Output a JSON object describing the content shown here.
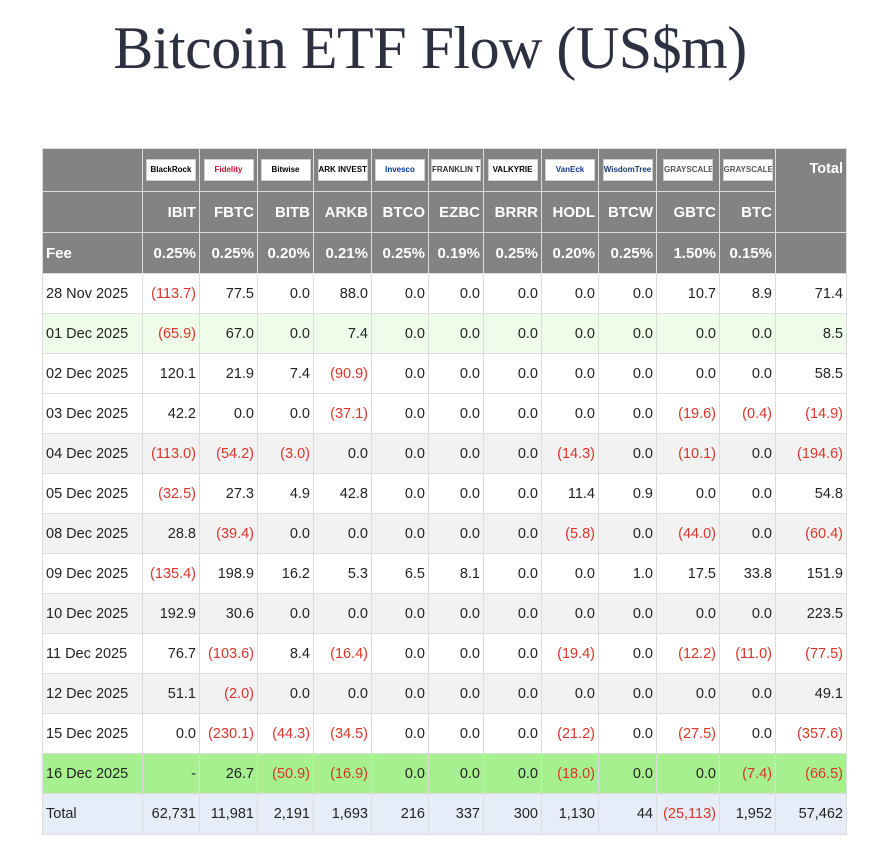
{
  "title": "Bitcoin ETF Flow (US$m)",
  "logos": [
    {
      "issuer": "BlackRock",
      "color": "#000000"
    },
    {
      "issuer": "Fidelity",
      "color": "#c8102e"
    },
    {
      "issuer": "Bitwise",
      "color": "#000000"
    },
    {
      "issuer": "ARK INVEST",
      "color": "#000000"
    },
    {
      "issuer": "Invesco",
      "color": "#0033a0"
    },
    {
      "issuer": "FRANKLIN TEMPLETON",
      "color": "#333333"
    },
    {
      "issuer": "VALKYRIE",
      "color": "#000000"
    },
    {
      "issuer": "VanEck",
      "color": "#1a3a8c"
    },
    {
      "issuer": "WisdomTree",
      "color": "#1a3a6c"
    },
    {
      "issuer": "GRAYSCALE",
      "color": "#555555"
    },
    {
      "issuer": "GRAYSCALE",
      "color": "#555555"
    }
  ],
  "header": {
    "total_label": "Total",
    "fee_label": "Fee",
    "tickers": [
      "IBIT",
      "FBTC",
      "BITB",
      "ARKB",
      "BTCO",
      "EZBC",
      "BRRR",
      "HODL",
      "BTCW",
      "GBTC",
      "BTC"
    ],
    "fees": [
      "0.25%",
      "0.25%",
      "0.20%",
      "0.21%",
      "0.25%",
      "0.19%",
      "0.25%",
      "0.20%",
      "0.25%",
      "1.50%",
      "0.15%"
    ]
  },
  "rows": [
    {
      "date": "28 Nov 2025",
      "values": [
        "(113.7)",
        "77.5",
        "0.0",
        "88.0",
        "0.0",
        "0.0",
        "0.0",
        "0.0",
        "0.0",
        "10.7",
        "8.9"
      ],
      "total": "71.4",
      "style": "odd"
    },
    {
      "date": "01 Dec 2025",
      "values": [
        "(65.9)",
        "67.0",
        "0.0",
        "7.4",
        "0.0",
        "0.0",
        "0.0",
        "0.0",
        "0.0",
        "0.0",
        "0.0"
      ],
      "total": "8.5",
      "style": "light"
    },
    {
      "date": "02 Dec 2025",
      "values": [
        "120.1",
        "21.9",
        "7.4",
        "(90.9)",
        "0.0",
        "0.0",
        "0.0",
        "0.0",
        "0.0",
        "0.0",
        "0.0"
      ],
      "total": "58.5",
      "style": "odd"
    },
    {
      "date": "03 Dec 2025",
      "values": [
        "42.2",
        "0.0",
        "0.0",
        "(37.1)",
        "0.0",
        "0.0",
        "0.0",
        "0.0",
        "0.0",
        "(19.6)",
        "(0.4)"
      ],
      "total": "(14.9)",
      "style": "odd"
    },
    {
      "date": "04 Dec 2025",
      "values": [
        "(113.0)",
        "(54.2)",
        "(3.0)",
        "0.0",
        "0.0",
        "0.0",
        "0.0",
        "(14.3)",
        "0.0",
        "(10.1)",
        "0.0"
      ],
      "total": "(194.6)",
      "style": "even"
    },
    {
      "date": "05 Dec 2025",
      "values": [
        "(32.5)",
        "27.3",
        "4.9",
        "42.8",
        "0.0",
        "0.0",
        "0.0",
        "11.4",
        "0.9",
        "0.0",
        "0.0"
      ],
      "total": "54.8",
      "style": "odd"
    },
    {
      "date": "08 Dec 2025",
      "values": [
        "28.8",
        "(39.4)",
        "0.0",
        "0.0",
        "0.0",
        "0.0",
        "0.0",
        "(5.8)",
        "0.0",
        "(44.0)",
        "0.0"
      ],
      "total": "(60.4)",
      "style": "even"
    },
    {
      "date": "09 Dec 2025",
      "values": [
        "(135.4)",
        "198.9",
        "16.2",
        "5.3",
        "6.5",
        "8.1",
        "0.0",
        "0.0",
        "1.0",
        "17.5",
        "33.8"
      ],
      "total": "151.9",
      "style": "odd"
    },
    {
      "date": "10 Dec 2025",
      "values": [
        "192.9",
        "30.6",
        "0.0",
        "0.0",
        "0.0",
        "0.0",
        "0.0",
        "0.0",
        "0.0",
        "0.0",
        "0.0"
      ],
      "total": "223.5",
      "style": "even"
    },
    {
      "date": "11 Dec 2025",
      "values": [
        "76.7",
        "(103.6)",
        "8.4",
        "(16.4)",
        "0.0",
        "0.0",
        "0.0",
        "(19.4)",
        "0.0",
        "(12.2)",
        "(11.0)"
      ],
      "total": "(77.5)",
      "style": "odd"
    },
    {
      "date": "12 Dec 2025",
      "values": [
        "51.1",
        "(2.0)",
        "0.0",
        "0.0",
        "0.0",
        "0.0",
        "0.0",
        "0.0",
        "0.0",
        "0.0",
        "0.0"
      ],
      "total": "49.1",
      "style": "even"
    },
    {
      "date": "15 Dec 2025",
      "values": [
        "0.0",
        "(230.1)",
        "(44.3)",
        "(34.5)",
        "0.0",
        "0.0",
        "0.0",
        "(21.2)",
        "0.0",
        "(27.5)",
        "0.0"
      ],
      "total": "(357.6)",
      "style": "odd"
    },
    {
      "date": "16 Dec 2025",
      "values": [
        "-",
        "26.7",
        "(50.9)",
        "(16.9)",
        "0.0",
        "0.0",
        "0.0",
        "(18.0)",
        "0.0",
        "0.0",
        "(7.4)"
      ],
      "total": "(66.5)",
      "style": "green"
    }
  ],
  "totals": {
    "label": "Total",
    "values": [
      "62,731",
      "11,981",
      "2,191",
      "1,693",
      "216",
      "337",
      "300",
      "1,130",
      "44",
      "(25,113)",
      "1,952"
    ],
    "total": "57,462"
  }
}
